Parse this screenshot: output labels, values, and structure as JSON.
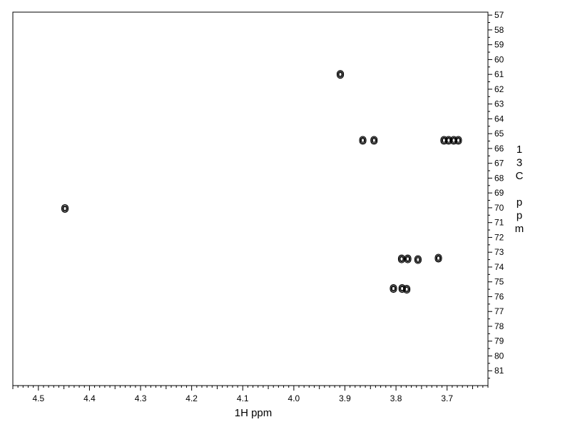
{
  "chart_data": {
    "type": "heatmap",
    "subtype": "2D NMR contour spectrum (HSQC)",
    "xlabel": "1H ppm",
    "ylabel_chars": [
      "1",
      "3",
      "C",
      "",
      "p",
      "p",
      "m"
    ],
    "x_reversed": true,
    "y_reversed": true,
    "xlim": [
      4.55,
      3.62
    ],
    "ylim": [
      56.8,
      82.0
    ],
    "x_ticks_major": [
      4.5,
      4.4,
      4.3,
      4.2,
      4.1,
      4.0,
      3.9,
      3.8,
      3.7
    ],
    "x_tick_labels": [
      "4.5",
      "4.4",
      "4.3",
      "4.2",
      "4.1",
      "4.0",
      "3.9",
      "3.8",
      "3.7"
    ],
    "y_ticks": [
      57,
      58,
      59,
      60,
      61,
      62,
      63,
      64,
      65,
      66,
      67,
      68,
      69,
      70,
      71,
      72,
      73,
      74,
      75,
      76,
      77,
      78,
      79,
      80,
      81
    ],
    "y_tick_labels": [
      "57",
      "58",
      "59",
      "60",
      "61",
      "62",
      "63",
      "64",
      "65",
      "66",
      "67",
      "68",
      "69",
      "70",
      "71",
      "72",
      "73",
      "74",
      "75",
      "76",
      "77",
      "78",
      "79",
      "80",
      "81"
    ],
    "grid": false,
    "contour_color": "#000000",
    "peaks": [
      {
        "x": 4.448,
        "y": 70.05
      },
      {
        "x": 3.909,
        "y": 61.0
      },
      {
        "x": 3.865,
        "y": 65.45
      },
      {
        "x": 3.843,
        "y": 65.45
      },
      {
        "x": 3.706,
        "y": 65.45
      },
      {
        "x": 3.697,
        "y": 65.45
      },
      {
        "x": 3.687,
        "y": 65.45
      },
      {
        "x": 3.678,
        "y": 65.45
      },
      {
        "x": 3.789,
        "y": 73.45
      },
      {
        "x": 3.777,
        "y": 73.45
      },
      {
        "x": 3.757,
        "y": 73.5
      },
      {
        "x": 3.717,
        "y": 73.4
      },
      {
        "x": 3.805,
        "y": 75.45
      },
      {
        "x": 3.788,
        "y": 75.45
      },
      {
        "x": 3.779,
        "y": 75.5
      }
    ]
  }
}
